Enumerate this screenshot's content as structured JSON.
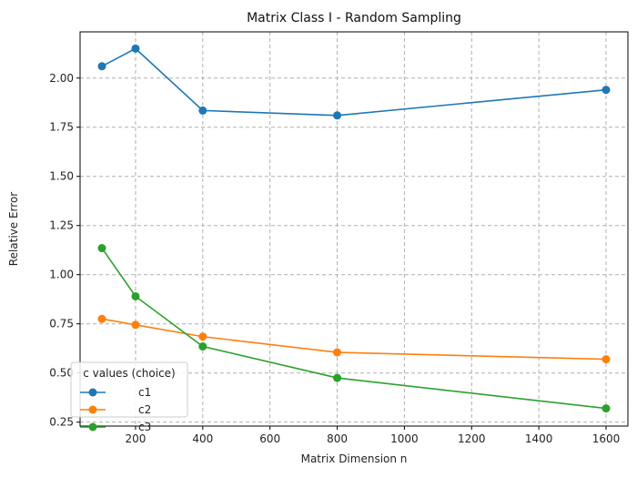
{
  "chart_data": {
    "type": "line",
    "title": "Matrix Class I - Random Sampling",
    "xlabel": "Matrix Dimension n",
    "ylabel": "Relative Error",
    "x": [
      100,
      200,
      400,
      800,
      1600
    ],
    "xlim": [
      35,
      1665
    ],
    "ylim": [
      0.23,
      2.235
    ],
    "xticks": [
      200,
      400,
      600,
      800,
      1000,
      1200,
      1400,
      1600
    ],
    "yticks": [
      0.25,
      0.5,
      0.75,
      1.0,
      1.25,
      1.5,
      1.75,
      2.0
    ],
    "grid": true,
    "legend": {
      "title": "c values (choice)",
      "placement": "lower-left"
    },
    "series": [
      {
        "name": "c1",
        "color": "#1f77b4",
        "values": [
          2.06,
          2.15,
          1.835,
          1.81,
          1.94
        ]
      },
      {
        "name": "c2",
        "color": "#ff7f0e",
        "values": [
          0.775,
          0.745,
          0.685,
          0.605,
          0.57
        ]
      },
      {
        "name": "c3",
        "color": "#2ca02c",
        "values": [
          1.135,
          0.89,
          0.635,
          0.475,
          0.32
        ]
      }
    ]
  }
}
